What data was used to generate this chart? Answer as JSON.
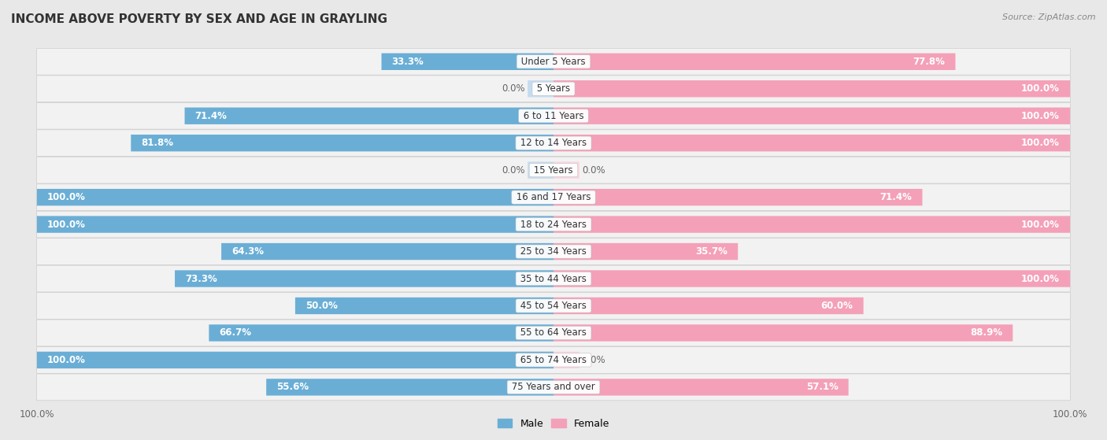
{
  "title": "INCOME ABOVE POVERTY BY SEX AND AGE IN GRAYLING",
  "source": "Source: ZipAtlas.com",
  "categories": [
    "Under 5 Years",
    "5 Years",
    "6 to 11 Years",
    "12 to 14 Years",
    "15 Years",
    "16 and 17 Years",
    "18 to 24 Years",
    "25 to 34 Years",
    "35 to 44 Years",
    "45 to 54 Years",
    "55 to 64 Years",
    "65 to 74 Years",
    "75 Years and over"
  ],
  "male_values": [
    33.3,
    0.0,
    71.4,
    81.8,
    0.0,
    100.0,
    100.0,
    64.3,
    73.3,
    50.0,
    66.7,
    100.0,
    55.6
  ],
  "female_values": [
    77.8,
    100.0,
    100.0,
    100.0,
    0.0,
    71.4,
    100.0,
    35.7,
    100.0,
    60.0,
    88.9,
    0.0,
    57.1
  ],
  "male_color": "#6AAED6",
  "female_color": "#F4A0B8",
  "male_stub_color": "#C5DCF0",
  "female_stub_color": "#FCD5E0",
  "male_label": "Male",
  "female_label": "Female",
  "bg_color": "#E8E8E8",
  "bar_bg_color": "#F2F2F2",
  "title_fontsize": 11,
  "label_fontsize": 8.5,
  "tick_fontsize": 8.5,
  "source_fontsize": 8
}
